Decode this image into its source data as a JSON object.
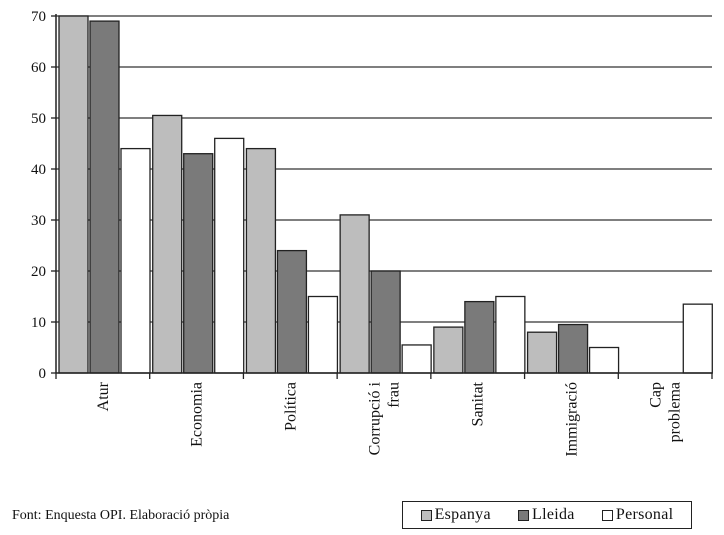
{
  "chart_data": {
    "type": "bar",
    "categories": [
      "Atur",
      "Economia",
      "Política",
      "Corrupció i frau",
      "Sanitat",
      "Immigració",
      "Cap problema"
    ],
    "category_label_lines": [
      [
        "Atur"
      ],
      [
        "Economia"
      ],
      [
        "Política"
      ],
      [
        "Corrupció i",
        "frau"
      ],
      [
        "Sanitat"
      ],
      [
        "Immigració"
      ],
      [
        "Cap",
        "problema"
      ]
    ],
    "series": [
      {
        "name": "Espanya",
        "values": [
          70,
          50.5,
          44,
          31,
          9,
          8,
          0
        ],
        "color": "#bdbdbd"
      },
      {
        "name": "Lleida",
        "values": [
          69,
          43,
          24,
          20,
          14,
          9.5,
          0
        ],
        "color": "#7a7a7a"
      },
      {
        "name": "Personal",
        "values": [
          44,
          46,
          15,
          5.5,
          15,
          5,
          13.5
        ],
        "color": "#ffffff"
      }
    ],
    "ylim": [
      0,
      70
    ],
    "yticks": [
      0,
      10,
      20,
      30,
      40,
      50,
      60,
      70
    ],
    "grid": true,
    "legend_position": "bottom-right",
    "title": "",
    "xlabel": "",
    "ylabel": ""
  },
  "source_note": "Font: Enquesta OPI. Elaboració pròpia"
}
